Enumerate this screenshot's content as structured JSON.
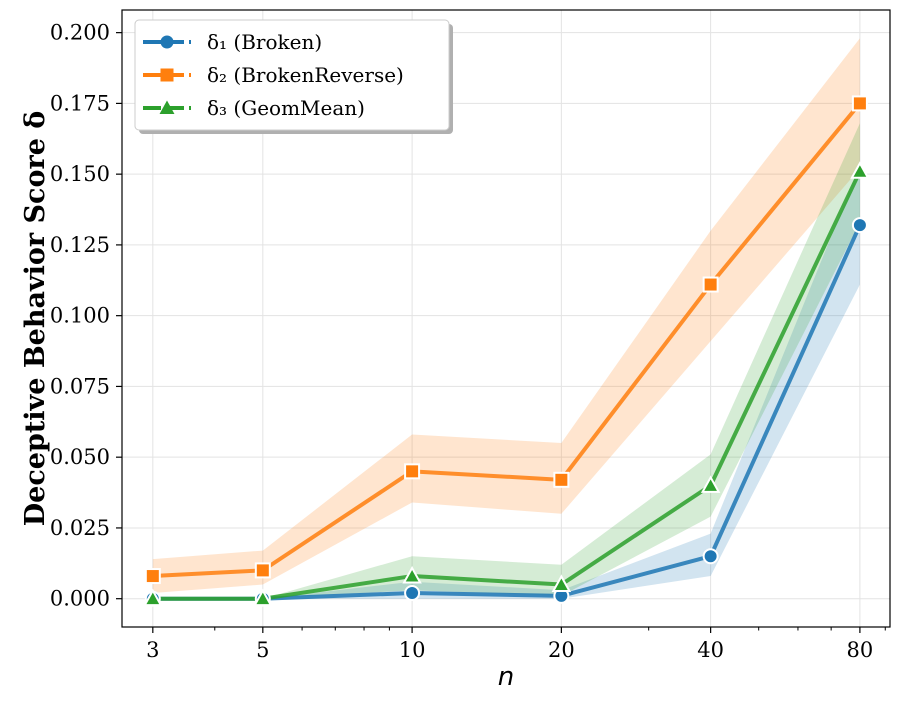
{
  "chart_data": {
    "type": "line",
    "title": "",
    "xlabel": "n",
    "ylabel": "Deceptive Behavior Score δ",
    "x_scale": "log",
    "x": [
      3,
      5,
      10,
      20,
      40,
      80
    ],
    "x_tick_labels": [
      "3",
      "5",
      "10",
      "20",
      "40",
      "80"
    ],
    "ylim": [
      -0.01,
      0.208
    ],
    "y_ticks": [
      0.0,
      0.025,
      0.05,
      0.075,
      0.1,
      0.125,
      0.15,
      0.175,
      0.2
    ],
    "y_tick_labels": [
      "0.000",
      "0.025",
      "0.050",
      "0.075",
      "0.100",
      "0.125",
      "0.150",
      "0.175",
      "0.200"
    ],
    "grid": true,
    "legend_position": "top-left",
    "series": [
      {
        "name": "δ₁ (Broken)",
        "color": "#1f77b4",
        "marker": "circle",
        "values": [
          0.0,
          0.0,
          0.002,
          0.001,
          0.015,
          0.132
        ],
        "lower": [
          0.0,
          0.0,
          0.0,
          0.0,
          0.008,
          0.111
        ],
        "upper": [
          0.0,
          0.0,
          0.006,
          0.003,
          0.023,
          0.153
        ]
      },
      {
        "name": "δ₂ (BrokenReverse)",
        "color": "#ff7f0e",
        "marker": "square",
        "values": [
          0.008,
          0.01,
          0.045,
          0.042,
          0.111,
          0.175
        ],
        "lower": [
          0.002,
          0.005,
          0.034,
          0.03,
          0.091,
          0.152
        ],
        "upper": [
          0.014,
          0.017,
          0.058,
          0.055,
          0.13,
          0.198
        ]
      },
      {
        "name": "δ₃ (GeomMean)",
        "color": "#2ca02c",
        "marker": "triangle",
        "values": [
          0.0,
          0.0,
          0.008,
          0.005,
          0.04,
          0.151
        ],
        "lower": [
          0.0,
          0.0,
          0.003,
          0.001,
          0.029,
          0.133
        ],
        "upper": [
          0.0,
          0.0,
          0.015,
          0.012,
          0.051,
          0.168
        ]
      }
    ]
  }
}
